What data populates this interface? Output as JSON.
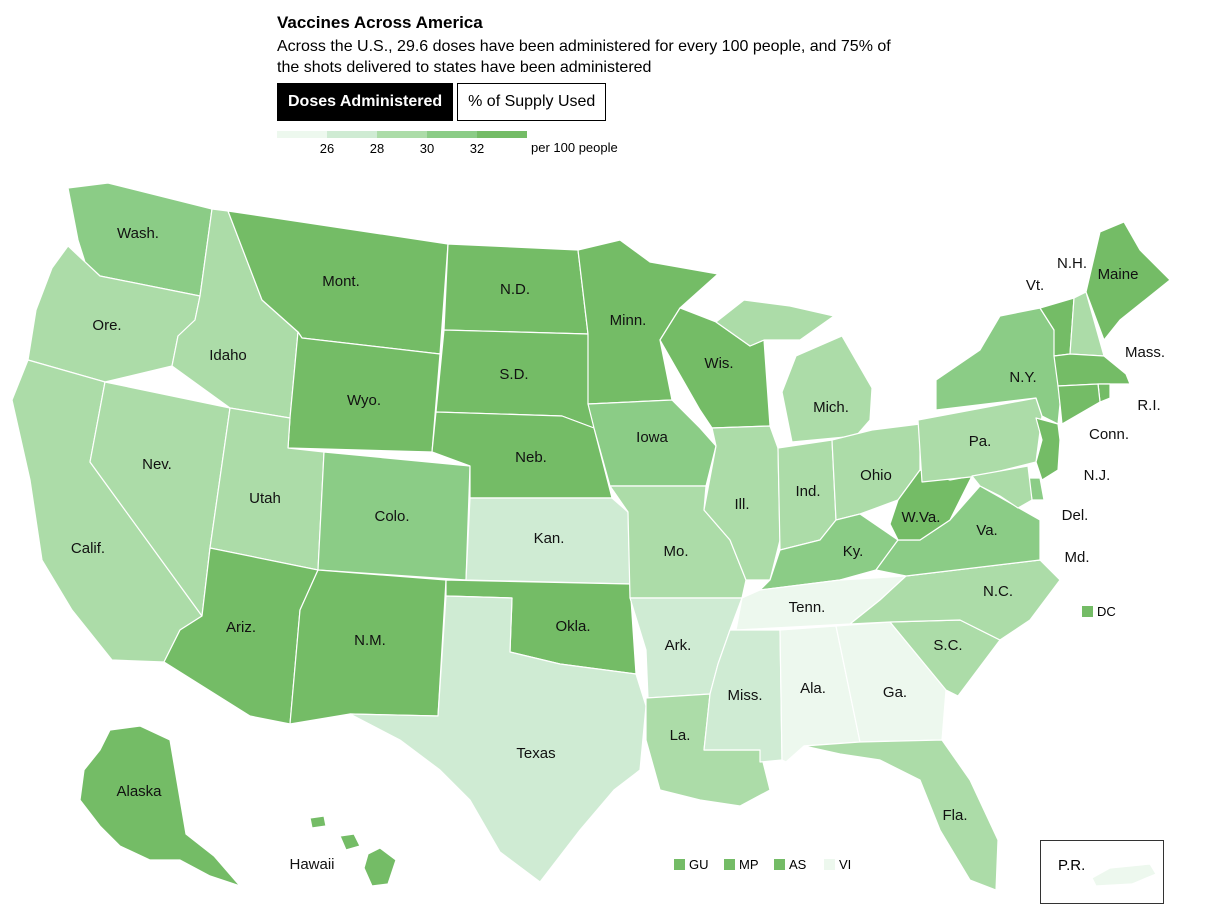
{
  "title": "Vaccines Across America",
  "subtitle": "Across the U.S., 29.6 doses have been administered for every 100 people, and 75% of the shots delivered to states have been administered",
  "tabs": [
    {
      "label": "Doses Administered",
      "active": true
    },
    {
      "label": "% of Supply Used",
      "active": false
    }
  ],
  "legend": {
    "ticks": [
      "26",
      "28",
      "30",
      "32"
    ],
    "unit": "per 100 people",
    "colors": [
      "#edf8ee",
      "#cfebd3",
      "#acdca8",
      "#8bcc86",
      "#74bc66"
    ]
  },
  "states": [
    {
      "name": "Wash.",
      "color": "#8bcc86"
    },
    {
      "name": "Ore.",
      "color": "#acdca8"
    },
    {
      "name": "Calif.",
      "color": "#acdca8"
    },
    {
      "name": "Nev.",
      "color": "#acdca8"
    },
    {
      "name": "Idaho",
      "color": "#acdca8"
    },
    {
      "name": "Mont.",
      "color": "#74bc66"
    },
    {
      "name": "Wyo.",
      "color": "#74bc66"
    },
    {
      "name": "Utah",
      "color": "#acdca8"
    },
    {
      "name": "Colo.",
      "color": "#8bcc86"
    },
    {
      "name": "Ariz.",
      "color": "#74bc66"
    },
    {
      "name": "N.M.",
      "color": "#74bc66"
    },
    {
      "name": "N.D.",
      "color": "#74bc66"
    },
    {
      "name": "S.D.",
      "color": "#74bc66"
    },
    {
      "name": "Neb.",
      "color": "#74bc66"
    },
    {
      "name": "Kan.",
      "color": "#cfebd3"
    },
    {
      "name": "Okla.",
      "color": "#74bc66"
    },
    {
      "name": "Texas",
      "color": "#cfebd3"
    },
    {
      "name": "Minn.",
      "color": "#74bc66"
    },
    {
      "name": "Iowa",
      "color": "#8bcc86"
    },
    {
      "name": "Mo.",
      "color": "#acdca8"
    },
    {
      "name": "Ark.",
      "color": "#cfebd3"
    },
    {
      "name": "La.",
      "color": "#acdca8"
    },
    {
      "name": "Wis.",
      "color": "#74bc66"
    },
    {
      "name": "Ill.",
      "color": "#acdca8"
    },
    {
      "name": "Mich.",
      "color": "#acdca8"
    },
    {
      "name": "Ind.",
      "color": "#acdca8"
    },
    {
      "name": "Ohio",
      "color": "#acdca8"
    },
    {
      "name": "Ky.",
      "color": "#8bcc86"
    },
    {
      "name": "Tenn.",
      "color": "#edf8ee"
    },
    {
      "name": "Miss.",
      "color": "#cfebd3"
    },
    {
      "name": "Ala.",
      "color": "#edf8ee"
    },
    {
      "name": "Ga.",
      "color": "#edf8ee"
    },
    {
      "name": "Fla.",
      "color": "#acdca8"
    },
    {
      "name": "S.C.",
      "color": "#acdca8"
    },
    {
      "name": "N.C.",
      "color": "#acdca8"
    },
    {
      "name": "Va.",
      "color": "#8bcc86"
    },
    {
      "name": "W.Va.",
      "color": "#74bc66"
    },
    {
      "name": "Pa.",
      "color": "#acdca8"
    },
    {
      "name": "N.Y.",
      "color": "#8bcc86"
    },
    {
      "name": "Vt.",
      "color": "#74bc66"
    },
    {
      "name": "N.H.",
      "color": "#acdca8"
    },
    {
      "name": "Maine",
      "color": "#74bc66"
    },
    {
      "name": "Mass.",
      "color": "#74bc66"
    },
    {
      "name": "R.I.",
      "color": "#74bc66"
    },
    {
      "name": "Conn.",
      "color": "#74bc66"
    },
    {
      "name": "N.J.",
      "color": "#74bc66"
    },
    {
      "name": "Del.",
      "color": "#8bcc86"
    },
    {
      "name": "Md.",
      "color": "#acdca8"
    },
    {
      "name": "Alaska",
      "color": "#74bc66"
    },
    {
      "name": "Hawaii",
      "color": "#74bc66"
    }
  ],
  "dc": {
    "label": "DC",
    "color": "#74bc66"
  },
  "territories": [
    {
      "label": "GU",
      "color": "#74bc66"
    },
    {
      "label": "MP",
      "color": "#74bc66"
    },
    {
      "label": "AS",
      "color": "#74bc66"
    },
    {
      "label": "VI",
      "color": "#edf8ee"
    }
  ],
  "pr": {
    "label": "P.R.",
    "color": "#edf8ee"
  }
}
